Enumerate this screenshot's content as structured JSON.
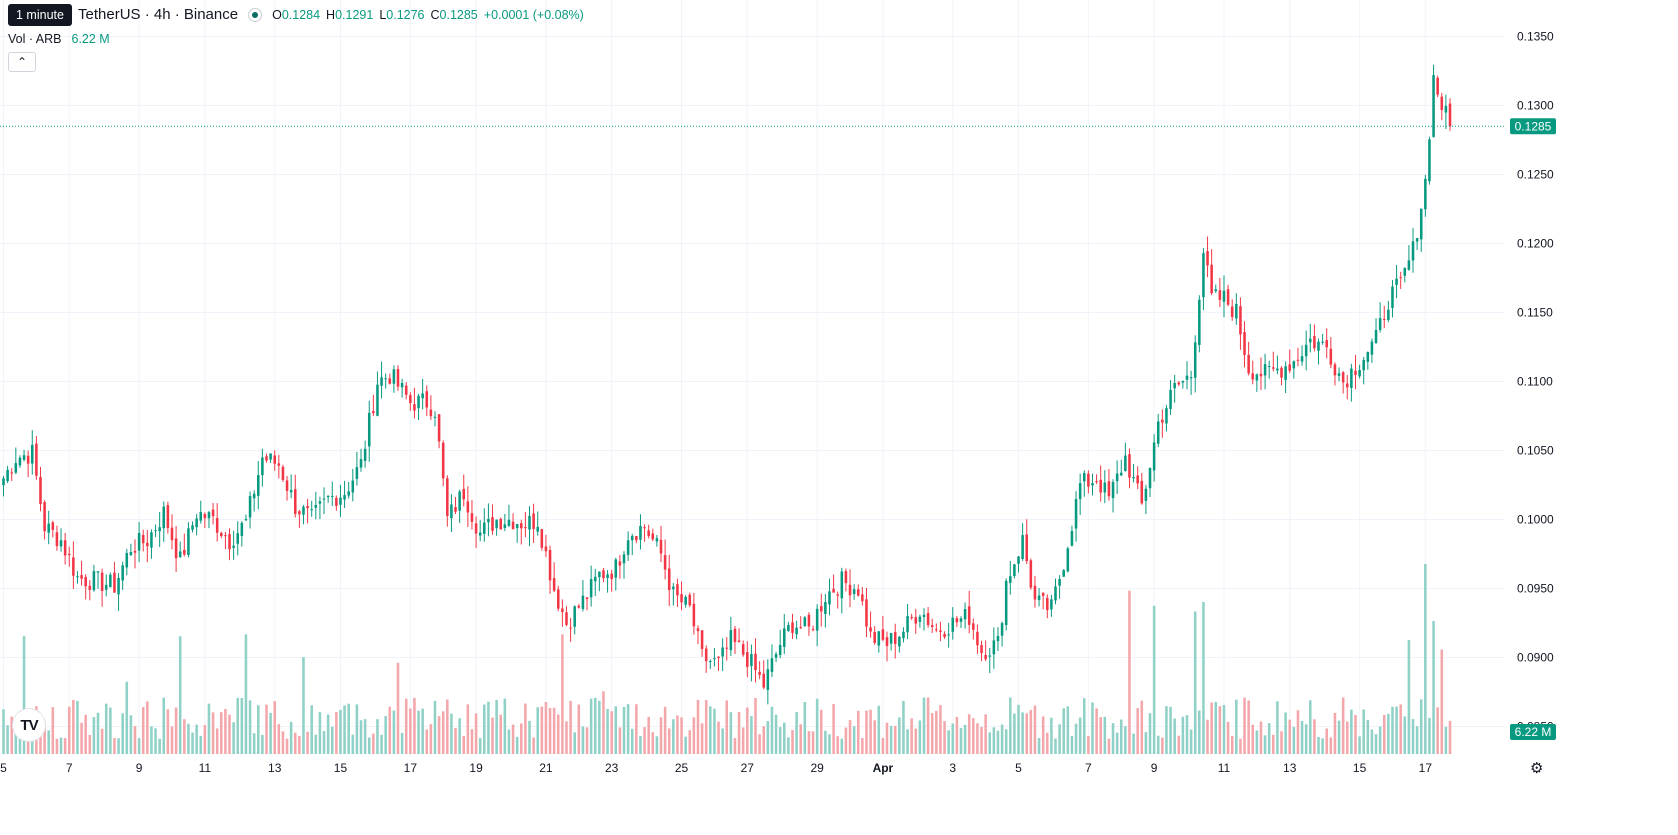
{
  "header": {
    "symbol_title": "TetherUS · 4h · Binance",
    "tooltip": "1 minute",
    "ohlc": [
      {
        "key": "O",
        "value": "0.1284"
      },
      {
        "key": "H",
        "value": "0.1291"
      },
      {
        "key": "L",
        "value": "0.1276"
      },
      {
        "key": "C",
        "value": "0.1285"
      }
    ],
    "change": "+0.0001 (+0.08%)",
    "volume_label": "Vol · ARB",
    "volume_value": "6.22 M",
    "collapse_icon": "chevron-up-icon"
  },
  "colors": {
    "up": "#089981",
    "down": "#f23645",
    "up_volume": "#8fd1c6",
    "down_volume": "#f4a7ab",
    "grid": "#f0f3fa"
  },
  "chart_data": {
    "type": "candlestick",
    "y_ticks": [
      "0.0850",
      "0.0900",
      "0.0950",
      "0.1000",
      "0.1050",
      "0.1100",
      "0.1150",
      "0.1200",
      "0.1250",
      "0.1300",
      "0.1350"
    ],
    "ylim": [
      0.0833,
      0.1362
    ],
    "x_ticks": [
      "5",
      "7",
      "9",
      "11",
      "13",
      "15",
      "17",
      "19",
      "21",
      "23",
      "25",
      "27",
      "29",
      "Apr",
      "3",
      "5",
      "7",
      "9",
      "11",
      "13",
      "15",
      "17"
    ],
    "last_price": "0.1285",
    "last_price_value": 0.1285,
    "last_volume": "6.22 M",
    "anchors": [
      [
        0,
        0.103
      ],
      [
        3,
        0.1045
      ],
      [
        7,
        0.1048
      ],
      [
        10,
        0.0995
      ],
      [
        14,
        0.0985
      ],
      [
        18,
        0.0958
      ],
      [
        23,
        0.0955
      ],
      [
        27,
        0.0952
      ],
      [
        31,
        0.098
      ],
      [
        35,
        0.0985
      ],
      [
        39,
        0.1005
      ],
      [
        43,
        0.097
      ],
      [
        47,
        0.1005
      ],
      [
        51,
        0.1
      ],
      [
        55,
        0.0985
      ],
      [
        59,
        0.0998
      ],
      [
        63,
        0.1045
      ],
      [
        67,
        0.104
      ],
      [
        71,
        0.101
      ],
      [
        75,
        0.1
      ],
      [
        79,
        0.1015
      ],
      [
        83,
        0.102
      ],
      [
        87,
        0.104
      ],
      [
        91,
        0.11
      ],
      [
        94,
        0.1105
      ],
      [
        99,
        0.1085
      ],
      [
        103,
        0.1085
      ],
      [
        105,
        0.108
      ],
      [
        108,
        0.1
      ],
      [
        112,
        0.102
      ],
      [
        116,
        0.099
      ],
      [
        120,
        0.1
      ],
      [
        124,
        0.1
      ],
      [
        127,
        0.0997
      ],
      [
        130,
        0.1
      ],
      [
        134,
        0.095
      ],
      [
        137,
        0.0925
      ],
      [
        142,
        0.0945
      ],
      [
        145,
        0.096
      ],
      [
        149,
        0.0965
      ],
      [
        152,
        0.099
      ],
      [
        156,
        0.0995
      ],
      [
        160,
        0.0975
      ],
      [
        163,
        0.0945
      ],
      [
        167,
        0.0935
      ],
      [
        170,
        0.09
      ],
      [
        174,
        0.0895
      ],
      [
        177,
        0.0912
      ],
      [
        181,
        0.09
      ],
      [
        185,
        0.088
      ],
      [
        189,
        0.091
      ],
      [
        192,
        0.0925
      ],
      [
        196,
        0.092
      ],
      [
        200,
        0.0945
      ],
      [
        204,
        0.0955
      ],
      [
        208,
        0.095
      ],
      [
        211,
        0.0915
      ],
      [
        215,
        0.091
      ],
      [
        219,
        0.092
      ],
      [
        223,
        0.0935
      ],
      [
        227,
        0.092
      ],
      [
        231,
        0.0925
      ],
      [
        235,
        0.093
      ],
      [
        238,
        0.0905
      ],
      [
        242,
        0.091
      ],
      [
        244,
        0.0955
      ],
      [
        248,
        0.0985
      ],
      [
        251,
        0.094
      ],
      [
        255,
        0.0935
      ],
      [
        258,
        0.097
      ],
      [
        262,
        0.1025
      ],
      [
        266,
        0.103
      ],
      [
        269,
        0.1015
      ],
      [
        273,
        0.1045
      ],
      [
        277,
        0.101
      ],
      [
        281,
        0.107
      ],
      [
        285,
        0.1095
      ],
      [
        289,
        0.1105
      ],
      [
        292,
        0.1195
      ],
      [
        294,
        0.116
      ],
      [
        297,
        0.116
      ],
      [
        300,
        0.115
      ],
      [
        303,
        0.111
      ],
      [
        307,
        0.1105
      ],
      [
        311,
        0.111
      ],
      [
        314,
        0.1115
      ],
      [
        318,
        0.113
      ],
      [
        322,
        0.1125
      ],
      [
        326,
        0.11
      ],
      [
        330,
        0.1115
      ],
      [
        334,
        0.113
      ],
      [
        337,
        0.116
      ],
      [
        340,
        0.117
      ],
      [
        343,
        0.1195
      ],
      [
        346,
        0.1245
      ],
      [
        348,
        0.132
      ],
      [
        350,
        0.13
      ],
      [
        352,
        0.1285
      ]
    ],
    "volume_spikes": [
      [
        5,
        0.62
      ],
      [
        30,
        0.38
      ],
      [
        43,
        0.62
      ],
      [
        59,
        0.63
      ],
      [
        73,
        0.51
      ],
      [
        96,
        0.48
      ],
      [
        136,
        0.63
      ],
      [
        146,
        0.33
      ],
      [
        274,
        0.86
      ],
      [
        280,
        0.78
      ],
      [
        290,
        0.75
      ],
      [
        292,
        0.8
      ],
      [
        342,
        0.6
      ],
      [
        346,
        1.0
      ],
      [
        348,
        0.7
      ],
      [
        350,
        0.55
      ]
    ],
    "candles_count": 353
  }
}
